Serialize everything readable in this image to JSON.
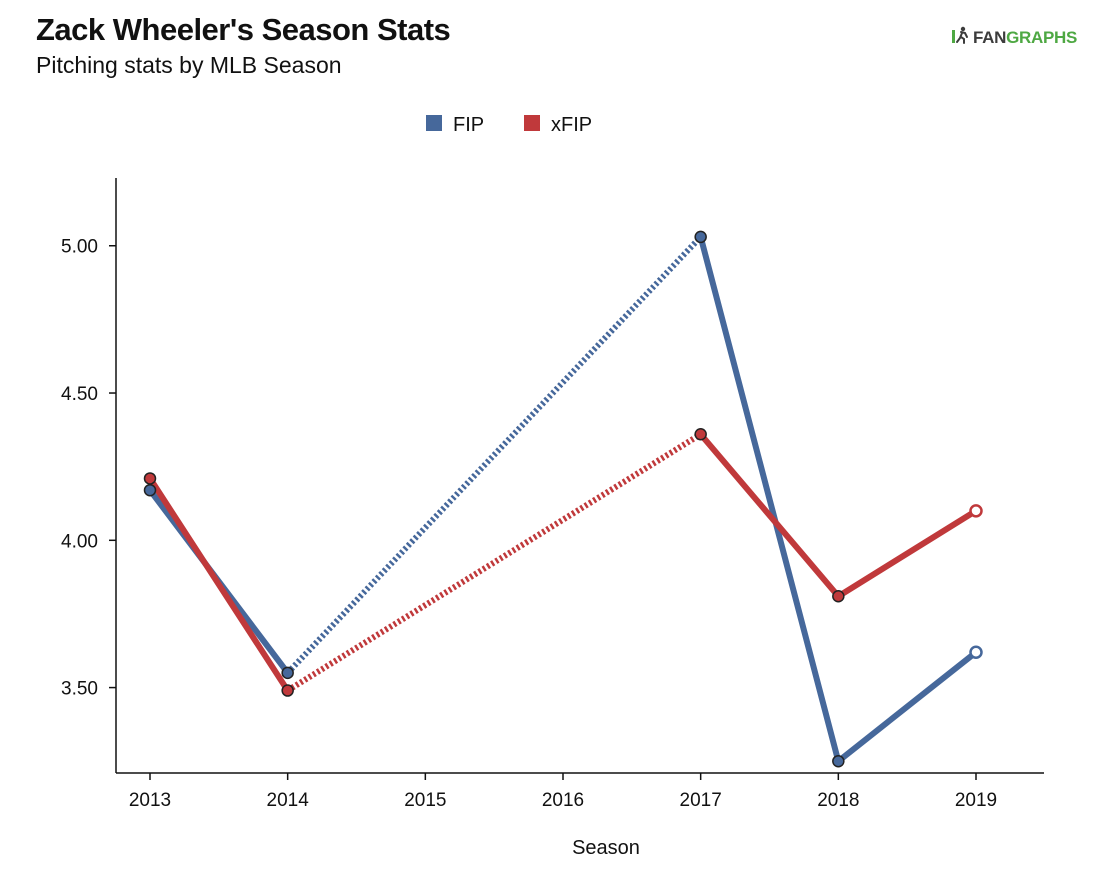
{
  "header": {
    "title": "Zack Wheeler's Season Stats",
    "subtitle": "Pitching stats by MLB Season"
  },
  "logo": {
    "icon": "fangraphs-runner-icon",
    "text_primary": "FAN",
    "text_secondary": "GRAPHS",
    "color_primary": "#3c3c3c",
    "color_secondary": "#4ea843"
  },
  "chart_data": {
    "type": "line",
    "title": "Zack Wheeler's Season Stats",
    "subtitle": "Pitching stats by MLB Season",
    "xlabel": "Season",
    "ylabel": "",
    "x": [
      "2013",
      "2014",
      "2015",
      "2016",
      "2017",
      "2018",
      "2019"
    ],
    "xticks": [
      "2013",
      "2014",
      "2015",
      "2016",
      "2017",
      "2018",
      "2019"
    ],
    "yticks": [
      "3.50",
      "4.00",
      "4.50",
      "5.00"
    ],
    "ylim": [
      3.21,
      5.23
    ],
    "grid": false,
    "legend_position": "top-center",
    "series": [
      {
        "name": "FIP",
        "color": "#46689b",
        "points": [
          {
            "x": "2013",
            "y": 4.17
          },
          {
            "x": "2014",
            "y": 3.55
          },
          {
            "x": "2017",
            "y": 5.03
          },
          {
            "x": "2018",
            "y": 3.25
          },
          {
            "x": "2019",
            "y": 3.62
          }
        ],
        "gap_dotted_between": [
          [
            "2014",
            "2017"
          ]
        ],
        "hollow_last_point": true
      },
      {
        "name": "xFIP",
        "color": "#c0393b",
        "points": [
          {
            "x": "2013",
            "y": 4.21
          },
          {
            "x": "2014",
            "y": 3.49
          },
          {
            "x": "2017",
            "y": 4.36
          },
          {
            "x": "2018",
            "y": 3.81
          },
          {
            "x": "2019",
            "y": 4.1
          }
        ],
        "gap_dotted_between": [
          [
            "2014",
            "2017"
          ]
        ],
        "hollow_last_point": true
      }
    ]
  }
}
